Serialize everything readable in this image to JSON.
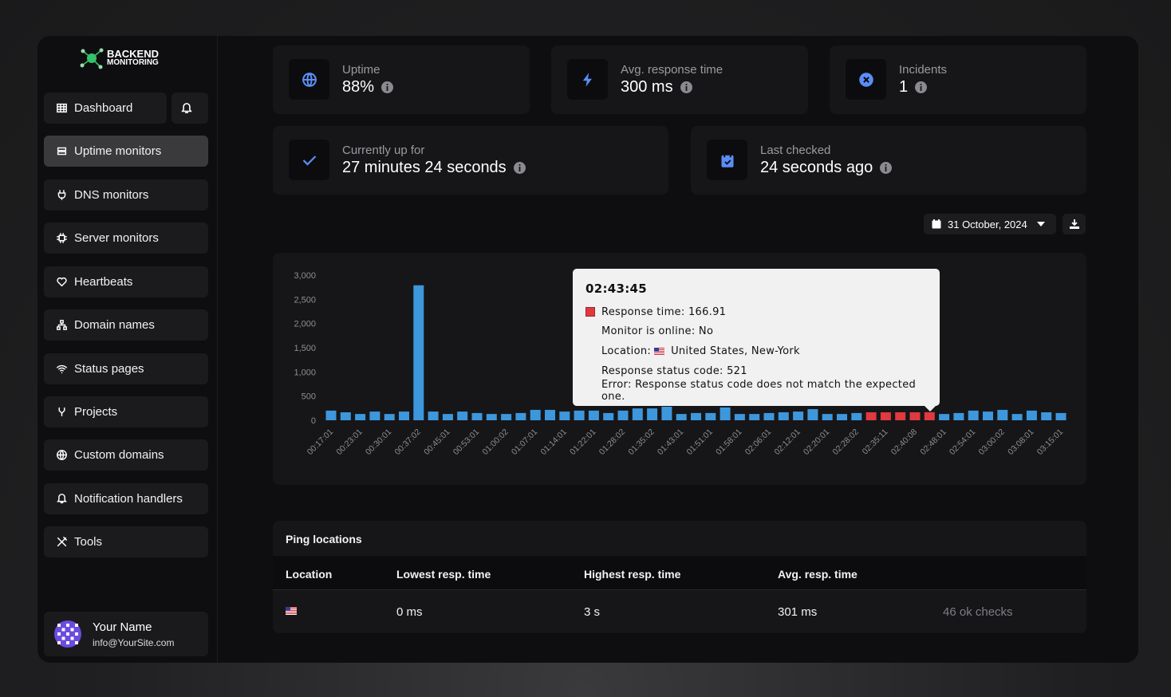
{
  "sidebar": {
    "logo": {
      "line1": "BACKEND",
      "line2": "MONITORING"
    },
    "nav": [
      "Dashboard",
      "Uptime monitors",
      "DNS monitors",
      "Server monitors",
      "Heartbeats",
      "Domain names",
      "Status pages",
      "Projects",
      "Custom domains",
      "Notification handlers",
      "Tools"
    ],
    "active_nav": 1,
    "user": {
      "name": "Your Name",
      "email": "info@YourSite.com"
    }
  },
  "stats": [
    {
      "label": "Uptime",
      "value": "88%"
    },
    {
      "label": "Avg. response time",
      "value": "300 ms"
    },
    {
      "label": "Incidents",
      "value": "1"
    },
    {
      "label": "Currently up for",
      "value": "27 minutes 24 seconds"
    },
    {
      "label": "Last checked",
      "value": "24 seconds ago"
    }
  ],
  "date_picker": "31 October, 2024",
  "chart_data": {
    "type": "bar",
    "categories": [
      "00:17:01",
      null,
      "00:23:01",
      null,
      "00:30:01",
      null,
      "00:37:02",
      null,
      "00:45:01",
      null,
      "00:53:01",
      null,
      "01:00:02",
      null,
      "01:07:01",
      null,
      "01:14:01",
      null,
      "01:22:01",
      null,
      "01:28:02",
      null,
      "01:35:02",
      null,
      "01:43:01",
      null,
      "01:51:01",
      null,
      "01:58:01",
      null,
      "02:06:01",
      null,
      "02:12:01",
      null,
      "02:20:01",
      null,
      "02:28:02",
      null,
      "02:35:11",
      null,
      "02:40:08",
      null,
      "02:48:01",
      null,
      "02:54:01",
      null,
      "03:00:02",
      null,
      "03:08:01",
      null,
      "03:15:01"
    ],
    "values": [
      200,
      165,
      130,
      180,
      130,
      180,
      2790,
      180,
      130,
      180,
      150,
      130,
      130,
      150,
      215,
      215,
      180,
      200,
      200,
      150,
      200,
      245,
      245,
      280,
      130,
      150,
      150,
      265,
      130,
      130,
      150,
      165,
      180,
      230,
      130,
      130,
      150,
      165,
      165,
      165,
      165,
      166.91,
      130,
      150,
      200,
      180,
      215,
      130,
      200,
      165,
      150
    ],
    "colors": [
      "#3d97dd",
      "#3d97dd",
      "#3d97dd",
      "#3d97dd",
      "#3d97dd",
      "#3d97dd",
      "#3d97dd",
      "#3d97dd",
      "#3d97dd",
      "#3d97dd",
      "#3d97dd",
      "#3d97dd",
      "#3d97dd",
      "#3d97dd",
      "#3d97dd",
      "#3d97dd",
      "#3d97dd",
      "#3d97dd",
      "#3d97dd",
      "#3d97dd",
      "#3d97dd",
      "#3d97dd",
      "#3d97dd",
      "#3d97dd",
      "#3d97dd",
      "#3d97dd",
      "#3d97dd",
      "#3d97dd",
      "#3d97dd",
      "#3d97dd",
      "#3d97dd",
      "#3d97dd",
      "#3d97dd",
      "#3d97dd",
      "#3d97dd",
      "#3d97dd",
      "#3d97dd",
      "#e0393f",
      "#e0393f",
      "#e0393f",
      "#e0393f",
      "#e0393f",
      "#3d97dd",
      "#3d97dd",
      "#3d97dd",
      "#3d97dd",
      "#3d97dd",
      "#3d97dd",
      "#3d97dd",
      "#3d97dd",
      "#3d97dd"
    ],
    "ylim": [
      0,
      3000
    ],
    "yticks": [
      0,
      500,
      {
        "value": 1000,
        "label": "1,000"
      },
      {
        "value": 1500,
        "label": "1,500"
      },
      {
        "value": 2000,
        "label": "2,000"
      },
      {
        "value": 2500,
        "label": "2,500"
      },
      {
        "value": 3000,
        "label": "3,000"
      }
    ],
    "grid": false
  },
  "tooltip": {
    "title": "02:43:45",
    "color": "#e0393f",
    "lines": [
      "Response time: 166.91",
      "Monitor is online: No",
      "Location:",
      "Response status code: 521",
      "Error: Response status code does not match the expected one."
    ],
    "location": "United States, New-York"
  },
  "table": {
    "title": "Ping locations",
    "headers": [
      "Location",
      "Lowest resp. time",
      "Highest resp. time",
      "Avg. resp. time"
    ],
    "rows": [
      {
        "lowest": "0 ms",
        "highest": "3 s",
        "avg": "301 ms",
        "checks": "46 ok checks"
      }
    ]
  }
}
